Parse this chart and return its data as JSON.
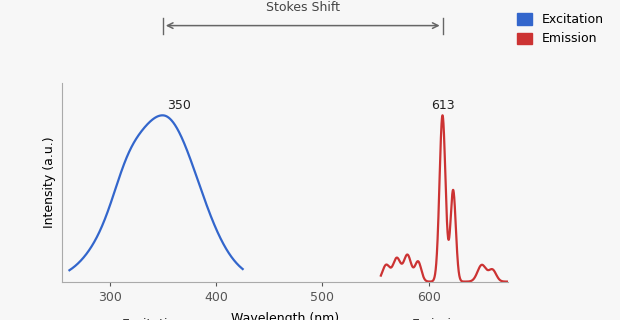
{
  "xlabel": "Wavelength (nm)",
  "ylabel": "Intensity (a.u.)",
  "xlim": [
    255,
    675
  ],
  "ylim": [
    0,
    1.05
  ],
  "excitation_peak": 350,
  "emission_peak": 613,
  "excitation_color": "#3366CC",
  "emission_color": "#CC3333",
  "background_color": "#f7f7f7",
  "stokes_shift_label": "Stokes Shift",
  "legend_excitation": "Excitation",
  "legend_emission": "Emission",
  "excitation_label": "Excitation",
  "emission_label": "Emission",
  "peak_excitation_label": "350",
  "peak_emission_label": "613",
  "xticks": [
    300,
    400,
    500,
    600
  ],
  "xtick_labels": [
    "300",
    "400",
    "500",
    "600"
  ]
}
